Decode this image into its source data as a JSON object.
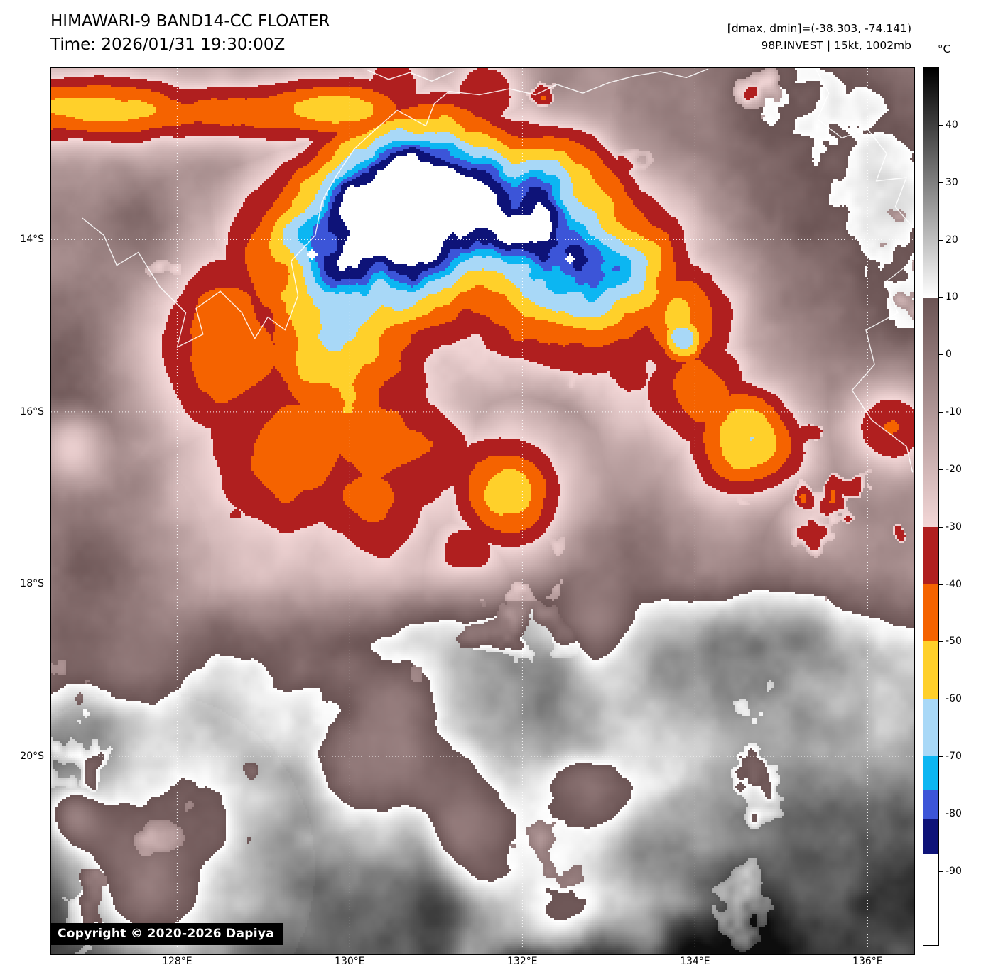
{
  "header": {
    "title": "HIMAWARI-9 BAND14-CC FLOATER",
    "time_line": "Time: 2026/01/31 19:30:00Z",
    "dmax_dmin": "[dmax, dmin]=(-38.303, -74.141)",
    "storm_info": "98P.INVEST | 15kt, 1002mb"
  },
  "copyright": "Copyright © 2020-2026 Dapiya",
  "colorbar": {
    "unit_label": "°C",
    "top_value": 50,
    "bottom_value": -103,
    "ticks": [
      "40",
      "30",
      "20",
      "10",
      "0",
      "-10",
      "-20",
      "-30",
      "-40",
      "-50",
      "-60",
      "-70",
      "-80",
      "-90"
    ],
    "segments": [
      {
        "from": 50,
        "to": 10,
        "type": "gradient",
        "c1": "#000000",
        "c2": "#ffffff"
      },
      {
        "from": 10,
        "to": -30,
        "type": "gradient",
        "c1": "#6b5454",
        "c2": "#f3d7d7"
      },
      {
        "from": -30,
        "to": -40,
        "type": "solid",
        "c": "#b01f1f"
      },
      {
        "from": -40,
        "to": -50,
        "type": "solid",
        "c": "#f56300"
      },
      {
        "from": -50,
        "to": -60,
        "type": "solid",
        "c": "#ffd02a"
      },
      {
        "from": -60,
        "to": -70,
        "type": "solid",
        "c": "#a8d8f7"
      },
      {
        "from": -70,
        "to": -76,
        "type": "solid",
        "c": "#0cb6f2"
      },
      {
        "from": -76,
        "to": -81,
        "type": "solid",
        "c": "#3c55d8"
      },
      {
        "from": -81,
        "to": -87,
        "type": "solid",
        "c": "#0e1378"
      },
      {
        "from": -87,
        "to": -103,
        "type": "solid",
        "c": "#ffffff"
      }
    ]
  },
  "axes": {
    "bounds": {
      "lon_min": 126.54,
      "lon_max": 136.54,
      "lat_max": -12.01,
      "lat_min": -22.3
    },
    "lat_ticks": [
      {
        "label": "14°S",
        "lat": -14
      },
      {
        "label": "16°S",
        "lat": -16
      },
      {
        "label": "18°S",
        "lat": -18
      },
      {
        "label": "20°S",
        "lat": -20
      }
    ],
    "lon_ticks": [
      {
        "label": "128°E",
        "lon": 128
      },
      {
        "label": "130°E",
        "lon": 130
      },
      {
        "label": "132°E",
        "lon": 132
      },
      {
        "label": "134°E",
        "lon": 134
      },
      {
        "label": "136°E",
        "lon": 136
      }
    ]
  },
  "scene": {
    "seed": 77,
    "storm": {
      "lon": 131.3,
      "lat": -15.05,
      "r_out": 0.345,
      "r_in": 0.125,
      "amp": 62,
      "aspect": 1.12,
      "south_cut": 0.7,
      "north_boost": 1.0,
      "west_boost": 0.45
    },
    "cores": [
      {
        "lon": 130.05,
        "lat": -14.5,
        "amp": 20,
        "sig": 0.05
      },
      {
        "lon": 130.85,
        "lat": -13.5,
        "amp": 22,
        "sig": 0.055
      },
      {
        "lon": 132.55,
        "lat": -14.3,
        "amp": 24,
        "sig": 0.062
      },
      {
        "lon": 133.3,
        "lat": -14.35,
        "amp": 16,
        "sig": 0.04
      },
      {
        "lon": 131.7,
        "lat": -13.85,
        "amp": 16,
        "sig": 0.05
      }
    ],
    "warm_notches": [
      {
        "lon": 131.15,
        "lat": -15.5,
        "amp": 14,
        "sig": 0.06
      },
      {
        "lon": 132.3,
        "lat": -16.2,
        "amp": 40,
        "sig": 0.055
      }
    ],
    "top_band": {
      "v_center": 0.048,
      "sig": 0.04,
      "u_full": 0.33,
      "u_end": 0.5,
      "amp": 46
    },
    "cold_patches": [
      {
        "lon": 128.6,
        "lat": -15.3,
        "amp": 44,
        "sig": 0.075
      },
      {
        "lon": 129.3,
        "lat": -16.3,
        "amp": 40,
        "sig": 0.08
      },
      {
        "lon": 130.3,
        "lat": -17.0,
        "amp": 34,
        "sig": 0.06
      },
      {
        "lon": 133.8,
        "lat": -14.9,
        "amp": 40,
        "sig": 0.05
      },
      {
        "lon": 134.0,
        "lat": -15.8,
        "amp": 34,
        "sig": 0.05
      },
      {
        "lon": 133.85,
        "lat": -15.15,
        "amp": 55,
        "sig": 0.022
      },
      {
        "lon": 131.85,
        "lat": -16.95,
        "amp": 50,
        "sig": 0.052
      },
      {
        "lon": 131.4,
        "lat": -17.6,
        "amp": 30,
        "sig": 0.038
      },
      {
        "lon": 134.6,
        "lat": -16.35,
        "amp": 46,
        "sig": 0.05
      },
      {
        "lon": 136.3,
        "lat": -16.15,
        "amp": 40,
        "sig": 0.04
      },
      {
        "lon": 135.3,
        "lat": -17.3,
        "amp": 24,
        "sig": 0.028
      },
      {
        "lon": 132.9,
        "lat": -18.55,
        "amp": 24,
        "sig": 0.033
      },
      {
        "lon": 126.75,
        "lat": -16.4,
        "amp": 28,
        "sig": 0.028
      },
      {
        "lon": 126.8,
        "lat": -20.7,
        "amp": 24,
        "sig": 0.024
      },
      {
        "lon": 131.6,
        "lat": -12.35,
        "amp": 30,
        "sig": 0.035
      },
      {
        "lon": 130.5,
        "lat": -12.2,
        "amp": 26,
        "sig": 0.03
      }
    ],
    "gray_patches": [
      {
        "lon": 135.9,
        "lat": -13.0,
        "t": 16,
        "sig": 0.105,
        "w": 0.92
      },
      {
        "lon": 136.4,
        "lat": -15.0,
        "t": 14,
        "sig": 0.07,
        "w": 0.6
      },
      {
        "lon": 126.6,
        "lat": -15.5,
        "t": 13,
        "sig": 0.05,
        "w": 0.8
      },
      {
        "lon": 126.9,
        "lat": -17.8,
        "t": 12,
        "sig": 0.055,
        "w": 0.8
      },
      {
        "lon": 127.6,
        "lat": -13.9,
        "t": 12,
        "sig": 0.032,
        "w": 0.7
      }
    ],
    "pink_patches": [
      {
        "lon": 127.6,
        "lat": -21.3,
        "t": -20,
        "sig": 0.075,
        "w": 0.7
      }
    ],
    "white_spots": [
      {
        "lon": 131.33,
        "lat": -13.45,
        "r": 3
      },
      {
        "lon": 132.55,
        "lat": -14.2,
        "r": 2
      },
      {
        "lon": 129.55,
        "lat": -14.15,
        "r": 2
      }
    ]
  },
  "coastlines": [
    [
      [
        126.9,
        -13.75
      ],
      [
        127.15,
        -13.95
      ],
      [
        127.3,
        -14.3
      ],
      [
        127.55,
        -14.15
      ],
      [
        127.8,
        -14.55
      ],
      [
        128.1,
        -14.85
      ],
      [
        128.0,
        -15.25
      ],
      [
        128.3,
        -15.1
      ],
      [
        128.22,
        -14.8
      ],
      [
        128.5,
        -14.6
      ],
      [
        128.75,
        -14.85
      ],
      [
        128.9,
        -15.15
      ],
      [
        129.05,
        -14.9
      ],
      [
        129.25,
        -15.05
      ],
      [
        129.4,
        -14.65
      ],
      [
        129.32,
        -14.25
      ],
      [
        129.6,
        -13.95
      ],
      [
        129.68,
        -13.55
      ],
      [
        129.85,
        -13.25
      ],
      [
        130.05,
        -12.95
      ],
      [
        130.3,
        -12.72
      ],
      [
        130.55,
        -12.5
      ],
      [
        130.88,
        -12.68
      ],
      [
        130.98,
        -12.42
      ],
      [
        131.15,
        -12.28
      ],
      [
        131.5,
        -12.32
      ],
      [
        131.85,
        -12.25
      ],
      [
        132.15,
        -12.32
      ],
      [
        132.4,
        -12.2
      ],
      [
        132.7,
        -12.3
      ],
      [
        133.0,
        -12.18
      ],
      [
        133.3,
        -12.1
      ],
      [
        133.6,
        -12.05
      ],
      [
        133.9,
        -12.12
      ],
      [
        134.15,
        -12.02
      ]
    ],
    [
      [
        130.2,
        -12.03
      ],
      [
        130.45,
        -12.14
      ],
      [
        130.7,
        -12.06
      ],
      [
        130.95,
        -12.16
      ],
      [
        131.2,
        -12.05
      ]
    ],
    [
      [
        135.4,
        -12.02
      ],
      [
        135.55,
        -12.3
      ],
      [
        135.42,
        -12.6
      ],
      [
        135.7,
        -12.82
      ],
      [
        136.0,
        -12.72
      ],
      [
        136.22,
        -13.0
      ],
      [
        136.1,
        -13.32
      ],
      [
        136.45,
        -13.28
      ],
      [
        136.32,
        -13.62
      ],
      [
        136.52,
        -13.85
      ]
    ],
    [
      [
        136.52,
        -14.25
      ],
      [
        136.2,
        -14.5
      ],
      [
        136.35,
        -14.85
      ],
      [
        135.98,
        -15.05
      ],
      [
        136.08,
        -15.45
      ],
      [
        135.82,
        -15.75
      ],
      [
        136.05,
        -16.1
      ],
      [
        136.45,
        -16.4
      ],
      [
        136.52,
        -16.7
      ]
    ]
  ]
}
